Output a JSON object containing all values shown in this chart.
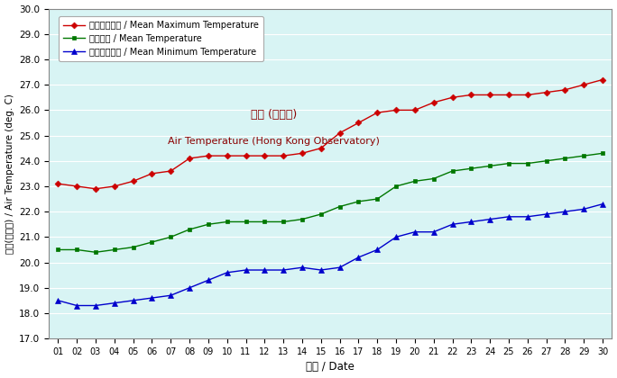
{
  "days": [
    1,
    2,
    3,
    4,
    5,
    6,
    7,
    8,
    9,
    10,
    11,
    12,
    13,
    14,
    15,
    16,
    17,
    18,
    19,
    20,
    21,
    22,
    23,
    24,
    25,
    26,
    27,
    28,
    29,
    30
  ],
  "mean_max": [
    23.1,
    23.0,
    22.9,
    23.0,
    23.2,
    23.5,
    23.6,
    24.1,
    24.2,
    24.2,
    24.2,
    24.2,
    24.2,
    24.3,
    24.5,
    25.1,
    25.5,
    25.9,
    26.0,
    26.0,
    26.3,
    26.5,
    26.6,
    26.6,
    26.6,
    26.6,
    26.7,
    26.8,
    27.0,
    27.2
  ],
  "mean_temp": [
    20.5,
    20.5,
    20.4,
    20.5,
    20.6,
    20.8,
    21.0,
    21.3,
    21.5,
    21.6,
    21.6,
    21.6,
    21.6,
    21.7,
    21.9,
    22.2,
    22.4,
    22.5,
    23.0,
    23.2,
    23.3,
    23.6,
    23.7,
    23.8,
    23.9,
    23.9,
    24.0,
    24.1,
    24.2,
    24.3
  ],
  "mean_min": [
    18.5,
    18.3,
    18.3,
    18.4,
    18.5,
    18.6,
    18.7,
    19.0,
    19.3,
    19.6,
    19.7,
    19.7,
    19.7,
    19.8,
    19.7,
    19.8,
    20.2,
    20.5,
    21.0,
    21.2,
    21.2,
    21.5,
    21.6,
    21.7,
    21.8,
    21.8,
    21.9,
    22.0,
    22.1,
    22.3
  ],
  "color_max": "#cc0000",
  "color_mean": "#007700",
  "color_min": "#0000cc",
  "bg_color": "#d8f4f4",
  "label_max": "平均最高氣溫 / Mean Maximum Temperature",
  "label_mean": "平均氣溫 / Mean Temperature",
  "label_min": "平均最低氣溫 / Mean Minimum Temperature",
  "xlabel": "日期 / Date",
  "ylabel": "氣溫(攝氏度) / Air Temperature (deg. C)",
  "annotation_line1": "氣溫 (天文台)",
  "annotation_line2": "Air Temperature (Hong Kong Observatory)",
  "ylim_min": 17.0,
  "ylim_max": 30.0,
  "yticks": [
    17.0,
    18.0,
    19.0,
    20.0,
    21.0,
    22.0,
    23.0,
    24.0,
    25.0,
    26.0,
    27.0,
    28.0,
    29.0,
    30.0
  ]
}
